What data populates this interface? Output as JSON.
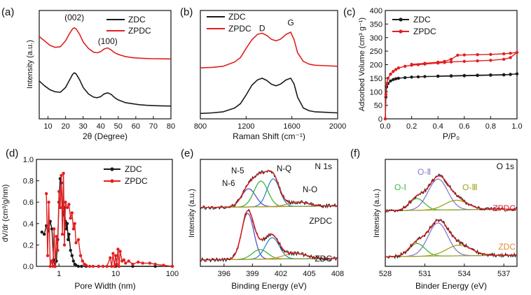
{
  "chart_data": [
    {
      "id": "a",
      "type": "line",
      "panel_label": "(a)",
      "xlabel": "2θ (Degree)",
      "ylabel": "Intensity (a.u.)",
      "xlim": [
        5,
        80
      ],
      "ylim": [
        0,
        10
      ],
      "xticks": [
        "10",
        "20",
        "30",
        "40",
        "50",
        "60",
        "70",
        "80"
      ],
      "legend": [
        "ZDC",
        "ZPDC"
      ],
      "annotations": [
        {
          "text": "(002)",
          "x": 25,
          "y": 9.1
        },
        {
          "text": "(100)",
          "x": 44,
          "y": 6.9
        }
      ],
      "series": [
        {
          "name": "ZDC",
          "color": "#1a1a1a",
          "x": [
            5,
            8,
            11,
            14,
            17,
            20,
            22,
            24,
            25,
            26,
            28,
            30,
            33,
            36,
            38,
            40,
            42,
            44,
            46,
            48,
            50,
            54,
            58,
            62,
            66,
            70,
            74,
            80
          ],
          "y": [
            3.5,
            3.05,
            2.7,
            2.5,
            2.45,
            2.9,
            3.5,
            4.1,
            4.25,
            4.15,
            3.6,
            2.9,
            2.3,
            2.0,
            1.95,
            2.05,
            2.3,
            2.4,
            2.25,
            1.95,
            1.75,
            1.5,
            1.4,
            1.3,
            1.25,
            1.22,
            1.2,
            1.18
          ]
        },
        {
          "name": "ZPDC",
          "color": "#e02020",
          "x": [
            5,
            8,
            11,
            14,
            17,
            20,
            22,
            24,
            25,
            26,
            28,
            30,
            33,
            36,
            38,
            40,
            42,
            44,
            46,
            48,
            50,
            54,
            58,
            62,
            66,
            70,
            74,
            80
          ],
          "y": [
            7.6,
            7.2,
            6.8,
            6.6,
            6.65,
            7.2,
            7.8,
            8.3,
            8.4,
            8.3,
            7.8,
            7.1,
            6.5,
            6.15,
            6.1,
            6.2,
            6.45,
            6.55,
            6.35,
            6.1,
            5.95,
            5.75,
            5.65,
            5.6,
            5.57,
            5.55,
            5.54,
            5.53
          ]
        }
      ]
    },
    {
      "id": "b",
      "type": "line",
      "panel_label": "(b)",
      "xlabel": "Raman Shift (cm⁻¹)",
      "ylabel": "",
      "xlim": [
        800,
        2000
      ],
      "ylim": [
        0,
        10
      ],
      "xticks": [
        "800",
        "1200",
        "1600",
        "2000"
      ],
      "legend": [
        "ZDC",
        "ZPDC"
      ],
      "annotations": [
        {
          "text": "D",
          "x": 1340,
          "y": 8.1
        },
        {
          "text": "G",
          "x": 1590,
          "y": 8.6
        }
      ],
      "series": [
        {
          "name": "ZDC",
          "color": "#1a1a1a",
          "x": [
            800,
            900,
            1000,
            1100,
            1150,
            1200,
            1250,
            1300,
            1340,
            1380,
            1420,
            1460,
            1500,
            1550,
            1590,
            1620,
            1650,
            1700,
            1750,
            1800,
            1900,
            2000
          ],
          "y": [
            0.5,
            0.55,
            0.65,
            1.0,
            1.4,
            2.2,
            3.1,
            3.6,
            3.75,
            3.55,
            3.2,
            3.05,
            3.2,
            3.6,
            3.75,
            3.2,
            2.0,
            1.0,
            0.75,
            0.65,
            0.6,
            0.55
          ]
        },
        {
          "name": "ZPDC",
          "color": "#e02020",
          "x": [
            800,
            900,
            1000,
            1100,
            1150,
            1200,
            1250,
            1300,
            1340,
            1380,
            1420,
            1460,
            1500,
            1550,
            1590,
            1620,
            1650,
            1700,
            1750,
            1800,
            1900,
            2000
          ],
          "y": [
            4.7,
            4.75,
            4.85,
            5.25,
            5.65,
            6.5,
            7.3,
            7.8,
            7.9,
            7.7,
            7.35,
            7.2,
            7.35,
            7.8,
            8.0,
            7.3,
            6.1,
            5.3,
            5.05,
            4.95,
            4.9,
            4.85
          ]
        }
      ]
    },
    {
      "id": "c",
      "type": "line",
      "panel_label": "(c)",
      "xlabel": "P/P₀",
      "ylabel": "Adsorbed Volume (cm³ g⁻¹)",
      "xlim": [
        0,
        1
      ],
      "ylim": [
        0,
        400
      ],
      "xticks": [
        "0.0",
        "0.2",
        "0.4",
        "0.6",
        "0.8",
        "1.0"
      ],
      "yticks": [
        "0",
        "50",
        "100",
        "150",
        "200",
        "250",
        "300",
        "350",
        "400"
      ],
      "legend": [
        "ZDC",
        "ZPDC"
      ],
      "series": [
        {
          "name": "ZDC",
          "color": "#1a1a1a",
          "x": [
            0.0,
            0.005,
            0.01,
            0.02,
            0.04,
            0.06,
            0.08,
            0.1,
            0.15,
            0.2,
            0.25,
            0.3,
            0.4,
            0.5,
            0.6,
            0.7,
            0.8,
            0.9,
            0.95,
            1.0,
            0.95,
            0.9,
            0.8,
            0.7,
            0.6,
            0.5,
            0.4
          ],
          "y": [
            0,
            80,
            118,
            130,
            140,
            145,
            148,
            150,
            152,
            154,
            155,
            156,
            157,
            158,
            159,
            160,
            161,
            162,
            164,
            166,
            164,
            163,
            162,
            161,
            160,
            159,
            158
          ]
        },
        {
          "name": "ZPDC",
          "color": "#e02020",
          "x": [
            0.0,
            0.005,
            0.01,
            0.02,
            0.04,
            0.06,
            0.08,
            0.1,
            0.15,
            0.2,
            0.25,
            0.3,
            0.4,
            0.45,
            0.5,
            0.6,
            0.7,
            0.8,
            0.9,
            0.95,
            1.0,
            0.95,
            0.9,
            0.8,
            0.7,
            0.6,
            0.55,
            0.5,
            0.45,
            0.4,
            0.3,
            0.2
          ],
          "y": [
            0,
            90,
            130,
            150,
            165,
            175,
            182,
            188,
            194,
            198,
            200,
            202,
            206,
            208,
            210,
            212,
            214,
            216,
            220,
            226,
            245,
            242,
            240,
            238,
            237,
            236,
            235,
            220,
            212,
            209,
            205,
            201
          ]
        }
      ]
    },
    {
      "id": "d",
      "type": "line",
      "panel_label": "(d)",
      "xlabel": "Pore Width (nm)",
      "ylabel": "dV/dr (cm³/g/nm)",
      "xscale": "log",
      "xlim": [
        0.4,
        100
      ],
      "ylim": [
        0,
        1.0
      ],
      "xticks": [
        "1",
        "10",
        "100"
      ],
      "yticks": [
        "0.0",
        "0.2",
        "0.4",
        "0.6",
        "0.8",
        "1.0"
      ],
      "legend": [
        "ZDC",
        "ZPDC"
      ],
      "series": [
        {
          "name": "ZDC",
          "color": "#1a1a1a",
          "x": [
            0.5,
            0.55,
            0.6,
            0.65,
            0.7,
            0.75,
            0.8,
            0.85,
            0.9,
            0.95,
            1.0,
            1.05,
            1.1,
            1.15,
            1.2,
            1.25,
            1.3,
            1.35,
            1.4,
            1.45,
            1.5,
            1.6,
            1.7,
            1.8,
            1.9,
            2.0,
            2.2,
            2.5,
            3,
            5,
            10,
            20,
            50,
            100
          ],
          "y": [
            0.32,
            0.3,
            0.38,
            0.33,
            0.42,
            0.35,
            0.06,
            0.0,
            0.05,
            0.25,
            0.6,
            0.82,
            0.78,
            0.55,
            0.48,
            0.55,
            0.42,
            0.35,
            0.4,
            0.25,
            0.3,
            0.15,
            0.1,
            0.05,
            0.02,
            0.01,
            0.0,
            0.0,
            0.0,
            0.0,
            0.0,
            0.0,
            0.0,
            0.0
          ]
        },
        {
          "name": "ZPDC",
          "color": "#e02020",
          "x": [
            0.6,
            0.63,
            0.66,
            0.7,
            0.74,
            0.78,
            0.82,
            0.86,
            0.9,
            0.95,
            1.0,
            1.05,
            1.1,
            1.15,
            1.2,
            1.25,
            1.3,
            1.4,
            1.5,
            1.6,
            1.7,
            1.8,
            1.9,
            2.0,
            2.2,
            2.4,
            2.6,
            2.8,
            3.0,
            3.5,
            4,
            5,
            6,
            7,
            8,
            8.5,
            9,
            9.5,
            10,
            10.5,
            11,
            11.5,
            12,
            13,
            14,
            15,
            17,
            20,
            25,
            30,
            40,
            50,
            70,
            100
          ],
          "y": [
            0.68,
            0.1,
            0.6,
            0.0,
            0.05,
            0.0,
            0.35,
            0.0,
            0.28,
            0.15,
            0.7,
            0.55,
            0.85,
            0.3,
            0.87,
            0.2,
            0.6,
            0.55,
            0.58,
            0.45,
            0.5,
            0.35,
            0.4,
            0.22,
            0.25,
            0.1,
            0.05,
            0.02,
            0.01,
            0.0,
            0.0,
            0.0,
            0.0,
            0.0,
            0.08,
            0.0,
            0.12,
            0.0,
            0.1,
            0.02,
            0.16,
            0.0,
            0.14,
            0.05,
            0.06,
            0.03,
            0.05,
            0.02,
            0.04,
            0.03,
            0.03,
            0.02,
            0.01,
            0.0
          ]
        }
      ]
    },
    {
      "id": "e",
      "type": "line",
      "panel_label": "(e)",
      "xlabel": "Binding Energy (eV)",
      "ylabel": "Intensity (a.u.)",
      "xlim": [
        393.5,
        408
      ],
      "ylim": [
        0,
        10
      ],
      "xticks": [
        "396",
        "399",
        "402",
        "405",
        "408"
      ],
      "title": "N 1s",
      "sample_labels": [
        "ZPDC",
        "ZDC"
      ],
      "annotations": [
        {
          "text": "N-5"
        },
        {
          "text": "N-6"
        },
        {
          "text": "N-Q"
        },
        {
          "text": "N-O"
        }
      ],
      "component_colors": {
        "N-6": "#5b4fc8",
        "N-5": "#3cb83c",
        "N-Q": "#2a8ad0",
        "N-O": "#e08a30"
      },
      "series": [
        {
          "name": "ZPDC",
          "offset": 5.5,
          "raw_color": "#1a1a1a",
          "fit_color": "#e02020",
          "components": [
            {
              "name": "N-6",
              "center": 398.6,
              "height": 1.7,
              "width": 1.1
            },
            {
              "name": "N-5",
              "center": 399.9,
              "height": 2.4,
              "width": 1.1
            },
            {
              "name": "N-Q",
              "center": 401.2,
              "height": 2.6,
              "width": 1.0
            },
            {
              "name": "N-O",
              "center": 403.8,
              "height": 0.4,
              "width": 1.6
            }
          ]
        },
        {
          "name": "ZDC",
          "offset": 0.6,
          "raw_color": "#1a1a1a",
          "fit_color": "#e02020",
          "components": [
            {
              "name": "N-6",
              "center": 398.5,
              "height": 4.3,
              "width": 0.95
            },
            {
              "name": "N-5",
              "center": 399.8,
              "height": 0.9,
              "width": 1.2
            },
            {
              "name": "N-Q",
              "center": 401.1,
              "height": 2.0,
              "width": 1.1
            },
            {
              "name": "N-O",
              "center": 403.5,
              "height": 0.5,
              "width": 1.8
            }
          ]
        }
      ]
    },
    {
      "id": "f",
      "type": "line",
      "panel_label": "(f)",
      "xlabel": "Binder Energy (eV)",
      "ylabel": "Intensity (a.u.)",
      "xlim": [
        528,
        538
      ],
      "ylim": [
        0,
        10
      ],
      "xticks": [
        "528",
        "531",
        "534",
        "537"
      ],
      "title": "O 1s",
      "sample_labels": [
        "ZPDC",
        "ZDC"
      ],
      "annotations": [
        {
          "text": "O-Ⅰ"
        },
        {
          "text": "O-Ⅱ"
        },
        {
          "text": "O-Ⅲ"
        }
      ],
      "component_colors": {
        "O-Ⅰ": "#3cb83c",
        "O-Ⅱ": "#8a78d0",
        "O-Ⅲ": "#a0a020"
      },
      "sample_label_colors": {
        "ZPDC": "#e02020",
        "ZDC": "#e08a30"
      },
      "series": [
        {
          "name": "ZPDC",
          "offset": 5.2,
          "raw_color": "#1a1a1a",
          "fit_color": "#e02020",
          "components": [
            {
              "name": "O-Ⅰ",
              "center": 530.4,
              "height": 1.1,
              "width": 0.85
            },
            {
              "name": "O-Ⅱ",
              "center": 532.0,
              "height": 2.9,
              "width": 1.1
            },
            {
              "name": "O-Ⅲ",
              "center": 533.4,
              "height": 0.9,
              "width": 1.3
            }
          ]
        },
        {
          "name": "ZDC",
          "offset": 0.9,
          "raw_color": "#1a1a1a",
          "fit_color": "#e02020",
          "components": [
            {
              "name": "O-Ⅰ",
              "center": 530.4,
              "height": 1.2,
              "width": 0.9
            },
            {
              "name": "O-Ⅱ",
              "center": 532.0,
              "height": 3.1,
              "width": 1.1
            },
            {
              "name": "O-Ⅲ",
              "center": 533.6,
              "height": 1.0,
              "width": 1.4
            }
          ]
        }
      ]
    }
  ]
}
